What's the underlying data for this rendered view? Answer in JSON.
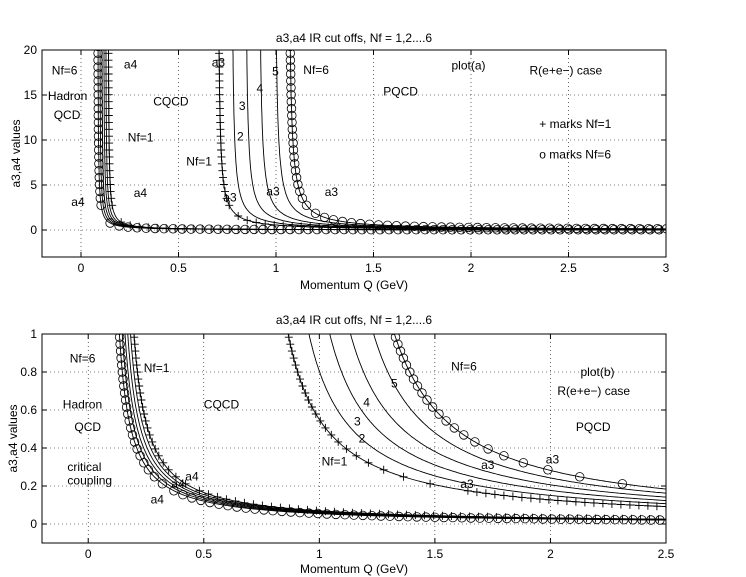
{
  "chart_data": [
    {
      "type": "line",
      "title": "a3,a4 IR cut offs, Nf = 1,2....6",
      "xlabel": "Momentum Q (GeV)",
      "ylabel": "a3,a4 values",
      "xlim": [
        -0.2,
        3.0
      ],
      "ylim": [
        -3,
        20
      ],
      "xticks": [
        0,
        0.5,
        1,
        1.5,
        2,
        2.5,
        3
      ],
      "xtick_labels": [
        "0",
        "0.5",
        "1",
        "1.5",
        "2",
        "2.5",
        "3"
      ],
      "yticks": [
        0,
        5,
        10,
        15,
        20
      ],
      "ytick_labels": [
        "0",
        "5",
        "10",
        "15",
        "20"
      ],
      "grid": true,
      "series": [
        {
          "name": "a4 Nf=6",
          "family": "a4",
          "nf": 6,
          "q0": 0.085,
          "c": 0.05,
          "marker": "o"
        },
        {
          "name": "a4 Nf=5",
          "family": "a4",
          "nf": 5,
          "q0": 0.095,
          "c": 0.052,
          "marker": "none"
        },
        {
          "name": "a4 Nf=4",
          "family": "a4",
          "nf": 4,
          "q0": 0.105,
          "c": 0.054,
          "marker": "none"
        },
        {
          "name": "a4 Nf=3",
          "family": "a4",
          "nf": 3,
          "q0": 0.115,
          "c": 0.056,
          "marker": "none"
        },
        {
          "name": "a4 Nf=2",
          "family": "a4",
          "nf": 2,
          "q0": 0.125,
          "c": 0.058,
          "marker": "none"
        },
        {
          "name": "a4 Nf=1",
          "family": "a4",
          "nf": 1,
          "q0": 0.138,
          "c": 0.06,
          "marker": "+"
        },
        {
          "name": "a3 Nf=1",
          "family": "a3",
          "nf": 1,
          "q0": 0.7,
          "c": 0.165,
          "marker": "+"
        },
        {
          "name": "a3 Nf=2",
          "family": "a3",
          "nf": 2,
          "q0": 0.77,
          "c": 0.185,
          "marker": "none"
        },
        {
          "name": "a3 Nf=3",
          "family": "a3",
          "nf": 3,
          "q0": 0.84,
          "c": 0.205,
          "marker": "none"
        },
        {
          "name": "a3 Nf=4",
          "family": "a3",
          "nf": 4,
          "q0": 0.91,
          "c": 0.225,
          "marker": "none"
        },
        {
          "name": "a3 Nf=5",
          "family": "a3",
          "nf": 5,
          "q0": 0.99,
          "c": 0.245,
          "marker": "none"
        },
        {
          "name": "a3 Nf=6",
          "family": "a3",
          "nf": 6,
          "q0": 1.06,
          "c": 0.265,
          "marker": "o"
        }
      ],
      "annotations": [
        {
          "text": "Nf=6",
          "x": -0.15,
          "y": 17.7
        },
        {
          "text": "Hadron",
          "x": -0.17,
          "y": 14.9
        },
        {
          "text": "QCD",
          "x": -0.14,
          "y": 12.8
        },
        {
          "text": "a4",
          "x": 0.22,
          "y": 18.4
        },
        {
          "text": "CQCD",
          "x": 0.37,
          "y": 14.3
        },
        {
          "text": "Nf=1",
          "x": 0.24,
          "y": 10.3
        },
        {
          "text": "a4",
          "x": -0.05,
          "y": 3.1
        },
        {
          "text": "a4",
          "x": 0.27,
          "y": 4.1
        },
        {
          "text": "a3",
          "x": 0.67,
          "y": 18.6
        },
        {
          "text": "3",
          "x": 0.81,
          "y": 13.8
        },
        {
          "text": "4",
          "x": 0.9,
          "y": 15.7
        },
        {
          "text": "5",
          "x": 0.98,
          "y": 17.6
        },
        {
          "text": "2",
          "x": 0.8,
          "y": 10.4
        },
        {
          "text": "Nf=1",
          "x": 0.54,
          "y": 7.6
        },
        {
          "text": "a3",
          "x": 0.73,
          "y": 3.6
        },
        {
          "text": "a3",
          "x": 0.95,
          "y": 4.3
        },
        {
          "text": "Nf=6",
          "x": 1.14,
          "y": 17.8
        },
        {
          "text": "a3",
          "x": 1.25,
          "y": 4.2
        },
        {
          "text": "PQCD",
          "x": 1.55,
          "y": 15.4
        },
        {
          "text": "plot(a)",
          "x": 1.9,
          "y": 18.3
        },
        {
          "text": "R(e+e−) case",
          "x": 2.3,
          "y": 17.7
        },
        {
          "text": "+ marks Nf=1",
          "x": 2.35,
          "y": 11.8
        },
        {
          "text": "o marks Nf=6",
          "x": 2.35,
          "y": 8.4
        }
      ]
    },
    {
      "type": "line",
      "title": "a3,a4 IR cut offs, Nf = 1,2....6",
      "xlabel": "Momentum Q (GeV)",
      "ylabel": "a3,a4 values",
      "xlim": [
        -0.2,
        2.5
      ],
      "ylim": [
        -0.1,
        1.0
      ],
      "xticks": [
        0,
        0.5,
        1,
        1.5,
        2,
        2.5
      ],
      "xtick_labels": [
        "0",
        "0.5",
        "1",
        "1.5",
        "2",
        "2.5"
      ],
      "yticks": [
        0,
        0.2,
        0.4,
        0.6,
        0.8,
        1.0
      ],
      "ytick_labels": [
        "0",
        "0.2",
        "0.4",
        "0.6",
        "0.8",
        "1"
      ],
      "grid": true,
      "series": [
        {
          "name": "a4 Nf=6",
          "family": "a4",
          "nf": 6,
          "q0": 0.085,
          "c": 0.05,
          "marker": "o"
        },
        {
          "name": "a4 Nf=5",
          "family": "a4",
          "nf": 5,
          "q0": 0.095,
          "c": 0.052,
          "marker": "none"
        },
        {
          "name": "a4 Nf=4",
          "family": "a4",
          "nf": 4,
          "q0": 0.105,
          "c": 0.054,
          "marker": "none"
        },
        {
          "name": "a4 Nf=3",
          "family": "a4",
          "nf": 3,
          "q0": 0.115,
          "c": 0.056,
          "marker": "none"
        },
        {
          "name": "a4 Nf=2",
          "family": "a4",
          "nf": 2,
          "q0": 0.125,
          "c": 0.058,
          "marker": "none"
        },
        {
          "name": "a4 Nf=1",
          "family": "a4",
          "nf": 1,
          "q0": 0.138,
          "c": 0.06,
          "marker": "+"
        },
        {
          "name": "a3 Nf=1",
          "family": "a3",
          "nf": 1,
          "q0": 0.7,
          "c": 0.165,
          "marker": "+"
        },
        {
          "name": "a3 Nf=2",
          "family": "a3",
          "nf": 2,
          "q0": 0.77,
          "c": 0.185,
          "marker": "none"
        },
        {
          "name": "a3 Nf=3",
          "family": "a3",
          "nf": 3,
          "q0": 0.84,
          "c": 0.205,
          "marker": "none"
        },
        {
          "name": "a3 Nf=4",
          "family": "a3",
          "nf": 4,
          "q0": 0.91,
          "c": 0.225,
          "marker": "none"
        },
        {
          "name": "a3 Nf=5",
          "family": "a3",
          "nf": 5,
          "q0": 0.99,
          "c": 0.245,
          "marker": "none"
        },
        {
          "name": "a3 Nf=6",
          "family": "a3",
          "nf": 6,
          "q0": 1.06,
          "c": 0.265,
          "marker": "o"
        }
      ],
      "annotations": [
        {
          "text": "Nf=6",
          "x": -0.08,
          "y": 0.87
        },
        {
          "text": "Nf=1",
          "x": 0.24,
          "y": 0.82
        },
        {
          "text": "Hadron",
          "x": -0.11,
          "y": 0.63
        },
        {
          "text": "QCD",
          "x": -0.06,
          "y": 0.51
        },
        {
          "text": "critical",
          "x": -0.09,
          "y": 0.3
        },
        {
          "text": "coupling",
          "x": -0.09,
          "y": 0.23
        },
        {
          "text": "CQCD",
          "x": 0.5,
          "y": 0.63
        },
        {
          "text": "a4",
          "x": 0.42,
          "y": 0.25
        },
        {
          "text": "a4",
          "x": 0.27,
          "y": 0.13
        },
        {
          "text": "a4",
          "x": 0.36,
          "y": 0.21
        },
        {
          "text": "5",
          "x": 1.31,
          "y": 0.74
        },
        {
          "text": "4",
          "x": 1.19,
          "y": 0.64
        },
        {
          "text": "3",
          "x": 1.15,
          "y": 0.54
        },
        {
          "text": "2",
          "x": 1.17,
          "y": 0.45
        },
        {
          "text": "Nf=1",
          "x": 1.01,
          "y": 0.33
        },
        {
          "text": "Nf=6",
          "x": 1.57,
          "y": 0.83
        },
        {
          "text": "a3",
          "x": 1.7,
          "y": 0.31
        },
        {
          "text": "a3",
          "x": 1.61,
          "y": 0.21
        },
        {
          "text": "a3",
          "x": 1.98,
          "y": 0.34
        },
        {
          "text": "plot(b)",
          "x": 2.13,
          "y": 0.8
        },
        {
          "text": "R(e+e−) case",
          "x": 2.03,
          "y": 0.7
        },
        {
          "text": "PQCD",
          "x": 2.11,
          "y": 0.51
        }
      ]
    }
  ]
}
